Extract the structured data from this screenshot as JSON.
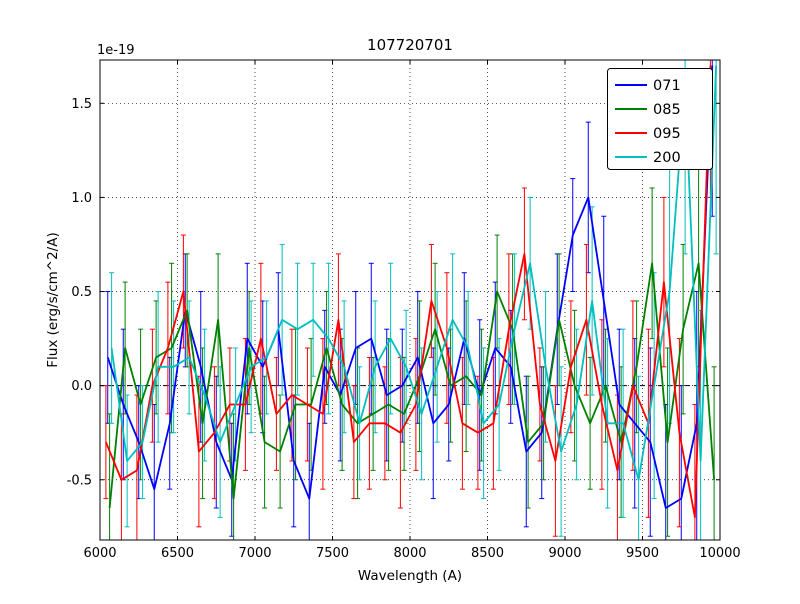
{
  "chart_data": {
    "type": "line",
    "title": "107720701",
    "xlabel": "Wavelength (A)",
    "ylabel": "Flux (erg/s/cm^2/A)",
    "y_offset_text": "1e-19",
    "xlim": [
      6000,
      10000
    ],
    "ylim": [
      -0.82,
      1.73
    ],
    "xticks": [
      6000,
      6500,
      7000,
      7500,
      8000,
      8500,
      9000,
      9500,
      10000
    ],
    "yticks": [
      -0.5,
      0.0,
      0.5,
      1.0,
      1.5
    ],
    "grid": true,
    "zero_line": true,
    "legend_position": "upper right",
    "x": [
      6050,
      6150,
      6250,
      6350,
      6450,
      6550,
      6650,
      6750,
      6850,
      6950,
      7050,
      7150,
      7250,
      7350,
      7450,
      7550,
      7650,
      7750,
      7850,
      7950,
      8050,
      8150,
      8250,
      8350,
      8450,
      8550,
      8650,
      8750,
      8850,
      8950,
      9050,
      9150,
      9250,
      9350,
      9450,
      9550,
      9650,
      9750,
      9850,
      9950
    ],
    "series": [
      {
        "name": "071",
        "color": "#0000ff",
        "x_offset": 0,
        "y": [
          0.15,
          -0.1,
          -0.3,
          -0.55,
          -0.2,
          0.4,
          0.1,
          -0.3,
          -0.5,
          0.25,
          0.1,
          0.3,
          -0.4,
          -0.6,
          0.1,
          -0.05,
          0.2,
          0.25,
          -0.05,
          0.0,
          0.15,
          -0.2,
          -0.1,
          0.25,
          -0.05,
          0.2,
          0.1,
          -0.35,
          -0.25,
          0.3,
          0.8,
          1.0,
          0.45,
          -0.1,
          -0.2,
          -0.3,
          -0.65,
          -0.6,
          -0.2,
          1.7
        ],
        "yerr": [
          0.35,
          0.4,
          0.3,
          0.45,
          0.35,
          0.3,
          0.4,
          0.35,
          0.3,
          0.4,
          0.35,
          0.3,
          0.35,
          0.4,
          0.3,
          0.35,
          0.3,
          0.4,
          0.35,
          0.3,
          0.35,
          0.4,
          0.3,
          0.35,
          0.4,
          0.35,
          0.3,
          0.4,
          0.35,
          0.4,
          0.3,
          0.4,
          0.45,
          0.4,
          0.45,
          0.5,
          0.55,
          0.6,
          0.7,
          0.8
        ]
      },
      {
        "name": "085",
        "color": "#008000",
        "x_offset": 12,
        "y": [
          -0.65,
          0.2,
          -0.1,
          0.15,
          0.2,
          0.4,
          -0.2,
          0.35,
          -0.6,
          0.2,
          -0.3,
          -0.35,
          -0.1,
          -0.1,
          0.2,
          -0.1,
          -0.2,
          -0.15,
          -0.1,
          -0.15,
          0.05,
          0.3,
          0.0,
          0.05,
          -0.05,
          0.5,
          0.3,
          -0.3,
          -0.2,
          0.35,
          0.0,
          -0.2,
          0.0,
          -0.3,
          0.1,
          0.65,
          -0.3,
          0.3,
          0.65,
          -0.5
        ],
        "yerr": [
          0.5,
          0.35,
          0.4,
          0.3,
          0.45,
          0.3,
          0.4,
          0.35,
          0.45,
          0.3,
          0.35,
          0.3,
          0.4,
          0.35,
          0.3,
          0.35,
          0.4,
          0.3,
          0.35,
          0.3,
          0.4,
          0.35,
          0.3,
          0.4,
          0.35,
          0.3,
          0.4,
          0.35,
          0.3,
          0.35,
          0.4,
          0.35,
          0.3,
          0.4,
          0.35,
          0.4,
          0.5,
          0.45,
          0.55,
          0.6
        ]
      },
      {
        "name": "095",
        "color": "#ff0000",
        "x_offset": -12,
        "y": [
          -0.3,
          -0.5,
          -0.45,
          0.0,
          0.2,
          0.5,
          -0.35,
          -0.25,
          -0.1,
          -0.1,
          0.25,
          -0.15,
          -0.05,
          -0.1,
          -0.15,
          0.35,
          -0.3,
          -0.2,
          -0.2,
          -0.25,
          -0.1,
          0.45,
          0.2,
          -0.2,
          -0.25,
          -0.2,
          0.3,
          0.7,
          -0.1,
          -0.4,
          0.1,
          0.35,
          -0.1,
          -0.45,
          0.0,
          -0.2,
          0.55,
          -0.25,
          -0.7,
          1.7
        ],
        "yerr": [
          0.3,
          0.35,
          0.4,
          0.3,
          0.35,
          0.3,
          0.4,
          0.35,
          0.3,
          0.35,
          0.4,
          0.3,
          0.35,
          0.3,
          0.4,
          0.35,
          0.3,
          0.35,
          0.3,
          0.4,
          0.35,
          0.3,
          0.4,
          0.35,
          0.3,
          0.35,
          0.4,
          0.35,
          0.3,
          0.4,
          0.35,
          0.4,
          0.45,
          0.4,
          0.45,
          0.5,
          0.45,
          0.5,
          0.6,
          0.7
        ]
      },
      {
        "name": "200",
        "color": "#00bfbf",
        "x_offset": 25,
        "y": [
          0.2,
          -0.4,
          -0.3,
          0.1,
          0.1,
          0.15,
          -0.05,
          -0.3,
          -0.1,
          0.1,
          0.15,
          0.35,
          0.3,
          0.35,
          0.25,
          0.1,
          -0.2,
          0.1,
          0.25,
          0.1,
          -0.15,
          0.1,
          0.35,
          0.2,
          -0.2,
          -0.1,
          0.3,
          0.65,
          0.1,
          -0.35,
          -0.1,
          0.45,
          -0.2,
          -0.2,
          -0.5,
          0.0,
          0.5,
          1.6,
          -0.4,
          1.7
        ],
        "yerr": [
          0.4,
          0.35,
          0.3,
          0.4,
          0.35,
          0.3,
          0.35,
          0.4,
          0.3,
          0.35,
          0.3,
          0.4,
          0.35,
          0.3,
          0.4,
          0.35,
          0.3,
          0.35,
          0.4,
          0.3,
          0.35,
          0.4,
          0.35,
          0.3,
          0.4,
          0.35,
          0.4,
          0.35,
          0.4,
          0.45,
          0.4,
          0.5,
          0.45,
          0.5,
          0.55,
          0.6,
          0.7,
          0.9,
          0.8,
          1.0
        ]
      }
    ]
  }
}
